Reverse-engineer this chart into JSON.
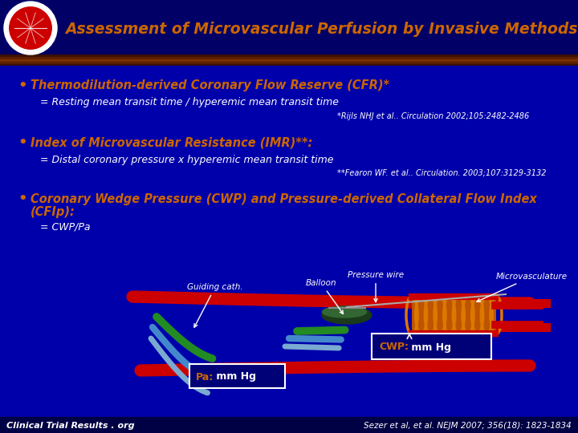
{
  "title": "Assessment of Microvascular Perfusion by Invasive Methods",
  "title_color": "#CC6600",
  "header_bg": "#000066",
  "bg_color": "#0000AA",
  "stripe1_color": "#5C1A00",
  "stripe2_color": "#8B3A00",
  "bullet_color": "#CC6600",
  "text_color": "#FFFFFF",
  "orange_color": "#CC6600",
  "bullet1_title": "Thermodilution-derived Coronary Flow Reserve (CFR)*",
  "bullet1_line1": "= Resting mean transit time / hyperemic mean transit time",
  "bullet1_ref": "*Rijls NHJ et al.. Circulation 2002;105:2482-2486",
  "bullet2_title": "Index of Microvascular Resistance (IMR)**:",
  "bullet2_line1": "= Distal coronary pressure x hyperemic mean transit time",
  "bullet2_ref": "**Fearon WF. et al.. Circulation. 2003;107:3129-3132",
  "bullet3_title_line1": "Coronary Wedge Pressure (CWP) and Pressure-derived Collateral Flow Index",
  "bullet3_title_line2": "(CFIp):",
  "bullet3_line1": "= CWP/Pa",
  "label_guiding": "Guiding cath.",
  "label_balloon": "Balloon",
  "label_pressure": "Pressure wire",
  "label_micro": "Microvasculature",
  "label_cwp": "CWP: mm Hg",
  "label_pa": "Pa: mm Hg",
  "footer_left": "Clinical Trial Results . org",
  "footer_right": "Sezer et al, et al. NEJM 2007; 356(18): 1823-1834",
  "red_vessel": "#CC0000",
  "green_vessel": "#228B22",
  "blue_vessel": "#4488CC",
  "light_blue_vessel": "#7AAAD0",
  "orange_coil": "#CC6600",
  "balloon_color": "#1A3A1A",
  "balloon_green": "#336633"
}
